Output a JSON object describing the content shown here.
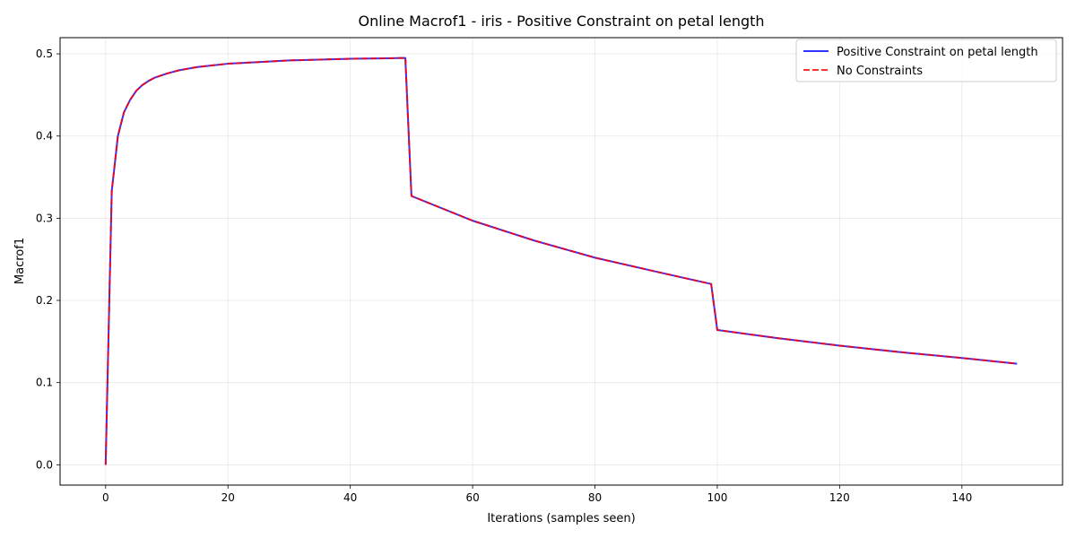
{
  "chart_data": {
    "type": "line",
    "title": "Online Macrof1 - iris - Positive Constraint on petal length",
    "xlabel": "Iterations (samples seen)",
    "ylabel": "Macrof1",
    "xlim": [
      -7.45,
      156.45
    ],
    "ylim": [
      -0.0247,
      0.5197
    ],
    "xticks": [
      0,
      20,
      40,
      60,
      80,
      100,
      120,
      140
    ],
    "yticks": [
      0.0,
      0.1,
      0.2,
      0.3,
      0.4,
      0.5
    ],
    "xtick_labels": [
      "0",
      "20",
      "40",
      "60",
      "80",
      "100",
      "120",
      "140"
    ],
    "ytick_labels": [
      "0.0",
      "0.1",
      "0.2",
      "0.3",
      "0.4",
      "0.5"
    ],
    "grid": true,
    "legend_position": "top-right",
    "series": [
      {
        "name": "Positive Constraint on petal length",
        "color": "#0000ff",
        "style": "solid",
        "x": [
          0,
          1,
          2,
          3,
          4,
          5,
          6,
          7,
          8,
          10,
          12,
          15,
          20,
          25,
          30,
          35,
          40,
          45,
          49,
          50,
          60,
          70,
          80,
          90,
          99,
          100,
          110,
          120,
          130,
          140,
          149
        ],
        "y": [
          0.0,
          0.333,
          0.4,
          0.429,
          0.444,
          0.455,
          0.462,
          0.467,
          0.471,
          0.476,
          0.48,
          0.484,
          0.488,
          0.49,
          0.492,
          0.493,
          0.494,
          0.4945,
          0.495,
          0.327,
          0.297,
          0.273,
          0.252,
          0.235,
          0.22,
          0.164,
          0.154,
          0.145,
          0.137,
          0.13,
          0.123
        ]
      },
      {
        "name": "No Constraints",
        "color": "#ff0000",
        "style": "dashed",
        "x": [
          0,
          1,
          2,
          3,
          4,
          5,
          6,
          7,
          8,
          10,
          12,
          15,
          20,
          25,
          30,
          35,
          40,
          45,
          49,
          50,
          60,
          70,
          80,
          90,
          99,
          100,
          110,
          120,
          130,
          140,
          149
        ],
        "y": [
          0.0,
          0.333,
          0.4,
          0.429,
          0.444,
          0.455,
          0.462,
          0.467,
          0.471,
          0.476,
          0.48,
          0.484,
          0.488,
          0.49,
          0.492,
          0.493,
          0.494,
          0.4945,
          0.495,
          0.327,
          0.297,
          0.273,
          0.252,
          0.235,
          0.22,
          0.164,
          0.154,
          0.145,
          0.137,
          0.13,
          0.123
        ]
      }
    ]
  }
}
